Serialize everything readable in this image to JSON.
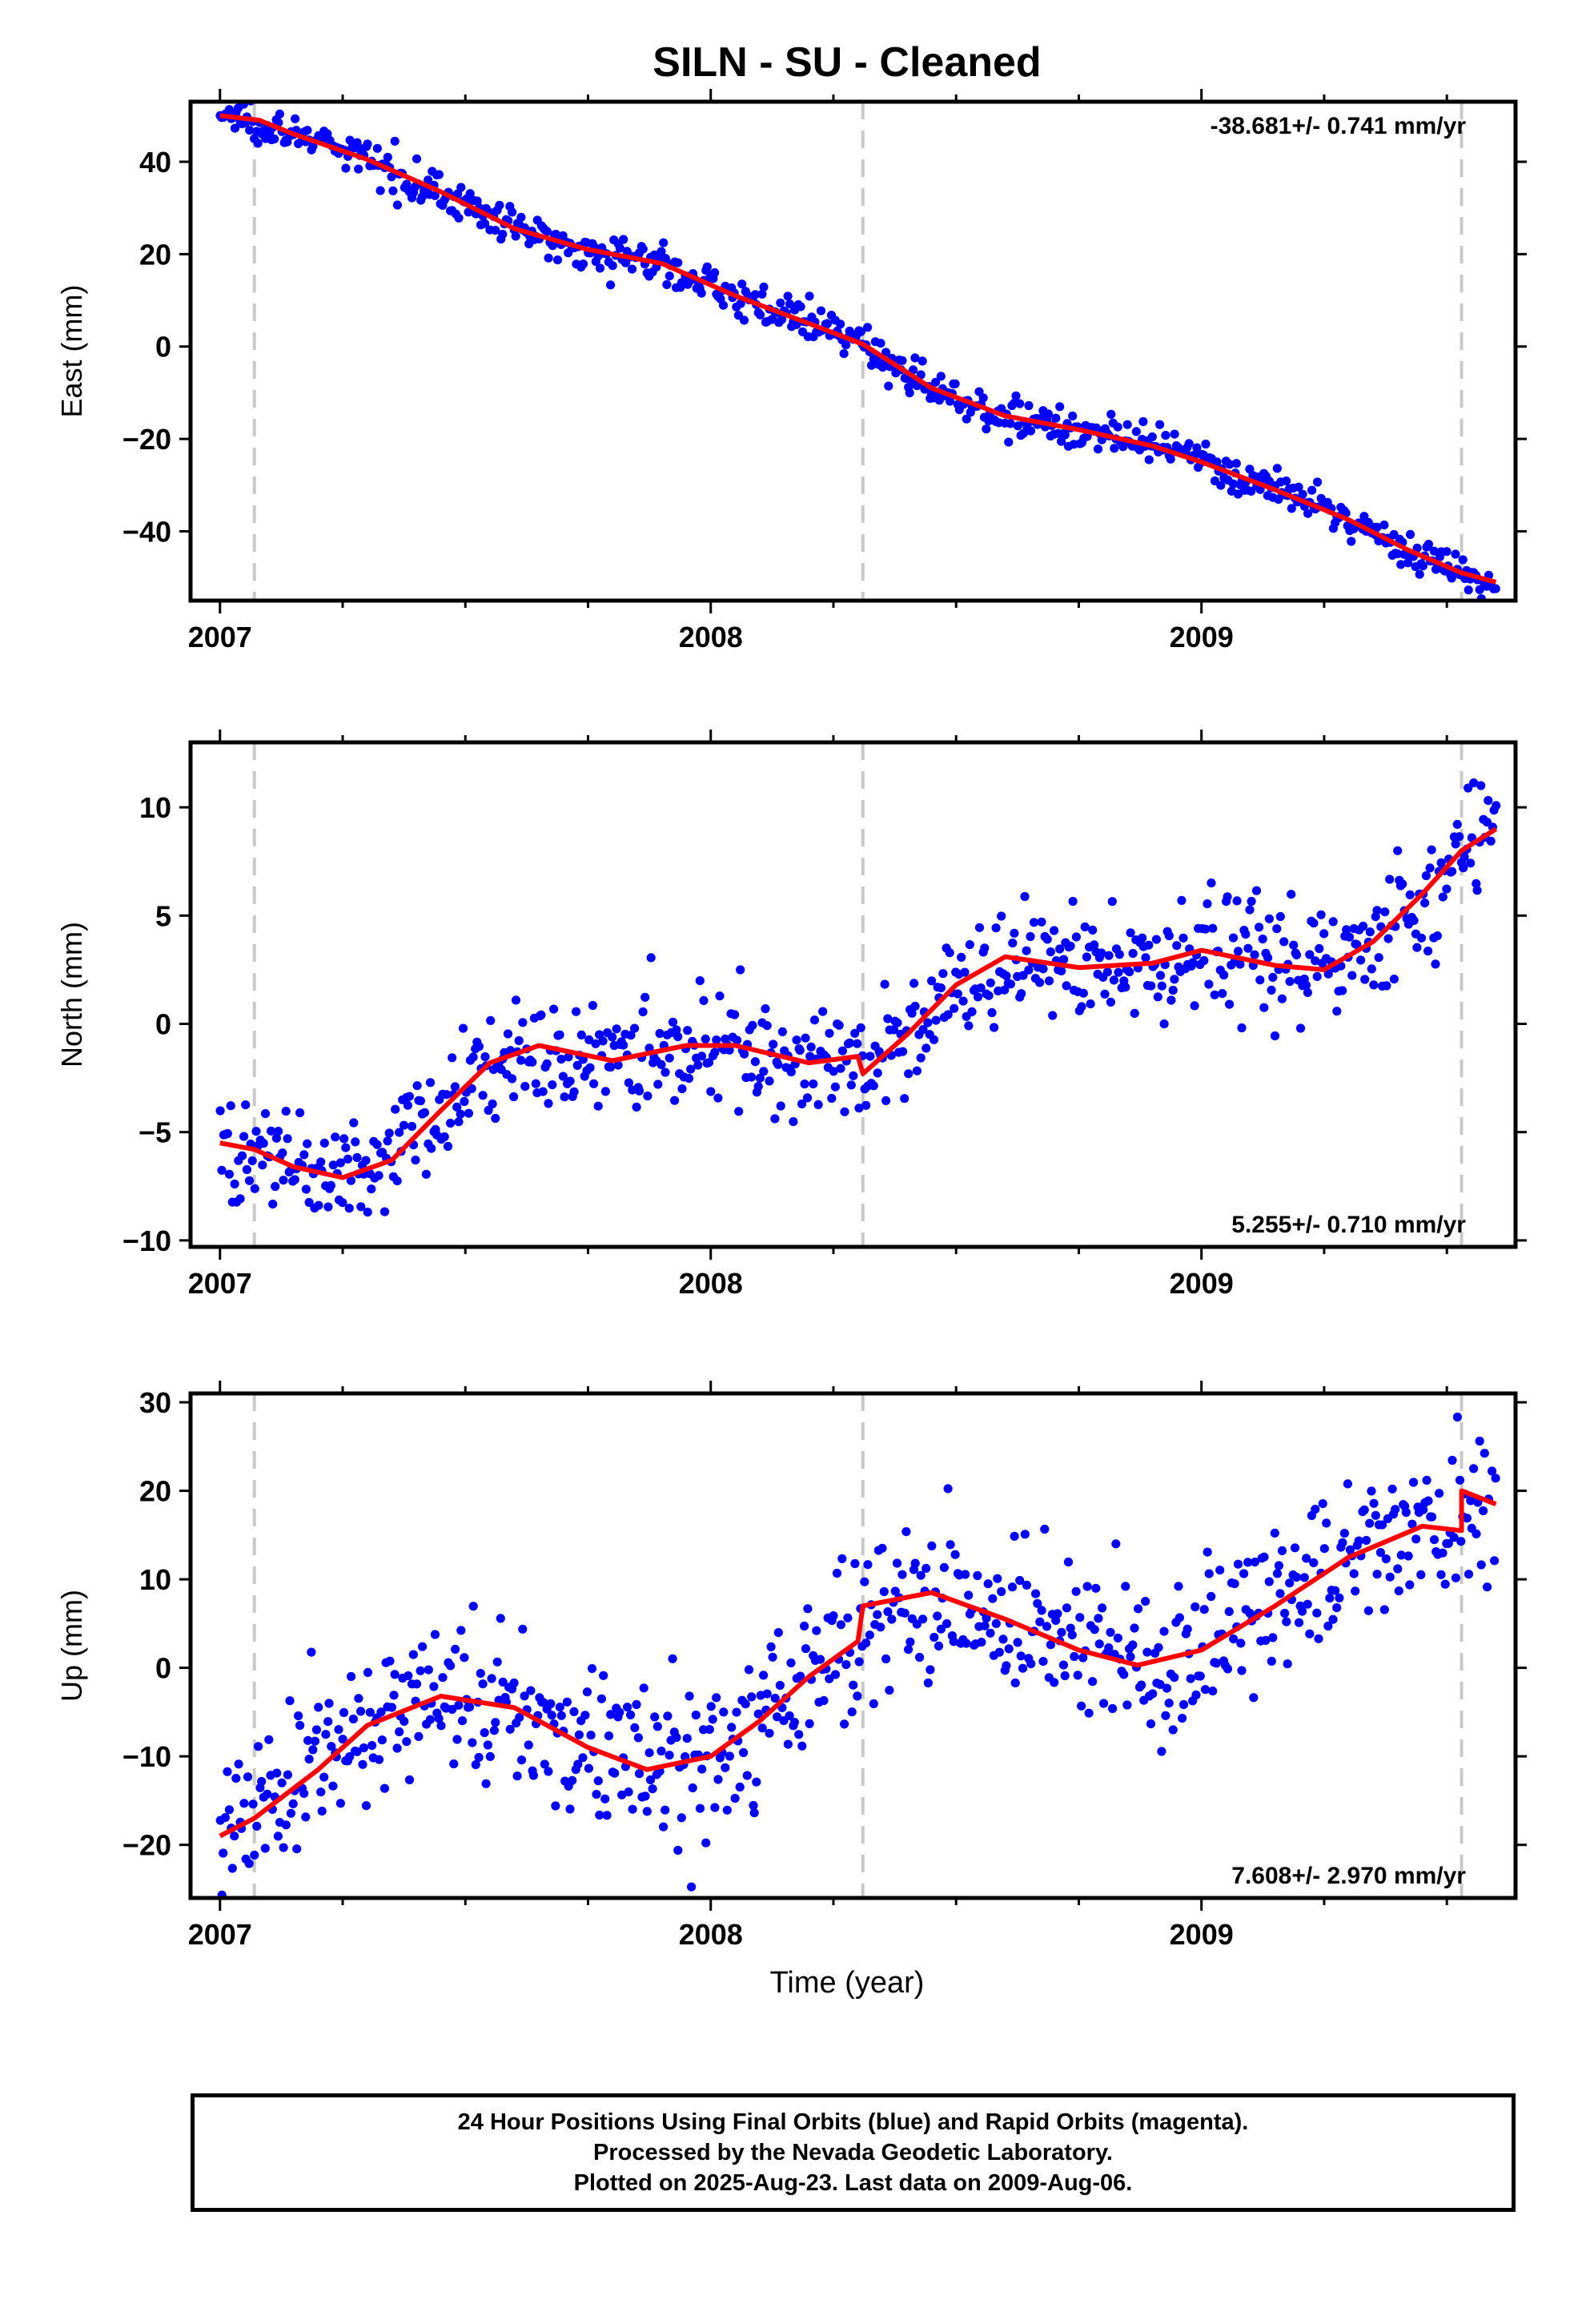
{
  "title": "SILN  - SU - Cleaned",
  "xlabel": "Time (year)",
  "caption": [
    "24 Hour Positions Using Final Orbits (blue) and Rapid Orbits (magenta).",
    "Processed by the Nevada Geodetic Laboratory.",
    "Plotted on 2025-Aug-23. Last data on 2009-Aug-06."
  ],
  "colors": {
    "points": "#0000ff",
    "fit": "#ff0000",
    "event_lines": "#c8c8c8",
    "frame": "#000000"
  },
  "chart_data": [
    {
      "type": "scatter",
      "ylabel": "East (mm)",
      "rate_label": "-38.681+/- 0.741 mm/yr",
      "rate_position": "top-right",
      "xlim": [
        2006.94,
        2009.64
      ],
      "ylim": [
        -55,
        53
      ],
      "x_ticks": [
        2007,
        2008,
        2009
      ],
      "x_tick_labels": [
        "2007",
        "2008",
        "2009"
      ],
      "y_ticks": [
        -40,
        -20,
        0,
        20,
        40
      ],
      "y_tick_labels": [
        "−40",
        "−20",
        "0",
        "20",
        "40"
      ],
      "event_lines_x": [
        2007.07,
        2008.31,
        2009.53
      ],
      "fit": [
        [
          2007.0,
          50.0
        ],
        [
          2007.08,
          49.0
        ],
        [
          2007.15,
          46.0
        ],
        [
          2007.3,
          40.5
        ],
        [
          2007.45,
          33.5
        ],
        [
          2007.6,
          25.5
        ],
        [
          2007.75,
          21.0
        ],
        [
          2007.9,
          18.0
        ],
        [
          2008.05,
          11.0
        ],
        [
          2008.2,
          5.0
        ],
        [
          2008.31,
          0.5
        ],
        [
          2008.45,
          -9.0
        ],
        [
          2008.6,
          -15.0
        ],
        [
          2008.75,
          -18.0
        ],
        [
          2008.9,
          -21.5
        ],
        [
          2009.0,
          -25.0
        ],
        [
          2009.15,
          -31.0
        ],
        [
          2009.3,
          -37.5
        ],
        [
          2009.42,
          -44.0
        ],
        [
          2009.53,
          -49.0
        ],
        [
          2009.6,
          -51.0
        ]
      ],
      "points_noise": 2.0,
      "points_count": 700,
      "points_xrange": [
        2007.0,
        2009.6
      ]
    },
    {
      "type": "scatter",
      "ylabel": "North (mm)",
      "rate_label": "5.255+/- 0.710 mm/yr",
      "rate_position": "bottom-right",
      "xlim": [
        2006.94,
        2009.64
      ],
      "ylim": [
        -10.3,
        13.0
      ],
      "x_ticks": [
        2007,
        2008,
        2009
      ],
      "x_tick_labels": [
        "2007",
        "2008",
        "2009"
      ],
      "y_ticks": [
        -10,
        -5,
        0,
        5,
        10
      ],
      "y_tick_labels": [
        "−10",
        "−5",
        "0",
        "5",
        "10"
      ],
      "event_lines_x": [
        2007.07,
        2008.31,
        2009.53
      ],
      "fit": [
        [
          2007.0,
          -5.5
        ],
        [
          2007.07,
          -5.8
        ],
        [
          2007.15,
          -6.6
        ],
        [
          2007.25,
          -7.1
        ],
        [
          2007.35,
          -6.3
        ],
        [
          2007.45,
          -4.0
        ],
        [
          2007.55,
          -1.8
        ],
        [
          2007.65,
          -1.0
        ],
        [
          2007.8,
          -1.7
        ],
        [
          2007.95,
          -1.0
        ],
        [
          2008.05,
          -1.0
        ],
        [
          2008.2,
          -1.8
        ],
        [
          2008.3,
          -1.5
        ],
        [
          2008.31,
          -2.3
        ],
        [
          2008.4,
          -0.5
        ],
        [
          2008.5,
          1.8
        ],
        [
          2008.6,
          3.1
        ],
        [
          2008.75,
          2.6
        ],
        [
          2008.9,
          2.8
        ],
        [
          2009.0,
          3.4
        ],
        [
          2009.15,
          2.7
        ],
        [
          2009.25,
          2.5
        ],
        [
          2009.35,
          3.8
        ],
        [
          2009.45,
          6.0
        ],
        [
          2009.53,
          8.0
        ],
        [
          2009.6,
          9.0
        ]
      ],
      "points_noise": 1.3,
      "points_count": 700,
      "points_xrange": [
        2007.0,
        2009.6
      ]
    },
    {
      "type": "scatter",
      "ylabel": "Up (mm)",
      "rate_label": "7.608+/- 2.970 mm/yr",
      "rate_position": "bottom-right",
      "xlim": [
        2006.94,
        2009.64
      ],
      "ylim": [
        -26,
        31
      ],
      "x_ticks": [
        2007,
        2008,
        2009
      ],
      "x_tick_labels": [
        "2007",
        "2008",
        "2009"
      ],
      "y_ticks": [
        -20,
        -10,
        0,
        10,
        20,
        30
      ],
      "y_tick_labels": [
        "−20",
        "−10",
        "0",
        "10",
        "20",
        "30"
      ],
      "event_lines_x": [
        2007.07,
        2008.31,
        2009.53
      ],
      "fit": [
        [
          2007.0,
          -19.0
        ],
        [
          2007.07,
          -17.0
        ],
        [
          2007.2,
          -11.5
        ],
        [
          2007.3,
          -6.5
        ],
        [
          2007.45,
          -3.2
        ],
        [
          2007.6,
          -4.5
        ],
        [
          2007.75,
          -9.0
        ],
        [
          2007.87,
          -11.5
        ],
        [
          2008.0,
          -10.0
        ],
        [
          2008.1,
          -6.0
        ],
        [
          2008.2,
          -1.0
        ],
        [
          2008.3,
          3.0
        ],
        [
          2008.31,
          7.0
        ],
        [
          2008.45,
          8.5
        ],
        [
          2008.6,
          5.5
        ],
        [
          2008.75,
          2.0
        ],
        [
          2008.87,
          0.3
        ],
        [
          2009.0,
          2.0
        ],
        [
          2009.15,
          7.0
        ],
        [
          2009.3,
          12.5
        ],
        [
          2009.45,
          16.0
        ],
        [
          2009.53,
          15.5
        ],
        [
          2009.53,
          20.0
        ],
        [
          2009.6,
          18.5
        ]
      ],
      "points_noise": 4.5,
      "points_count": 700,
      "points_xrange": [
        2007.0,
        2009.6
      ]
    }
  ]
}
